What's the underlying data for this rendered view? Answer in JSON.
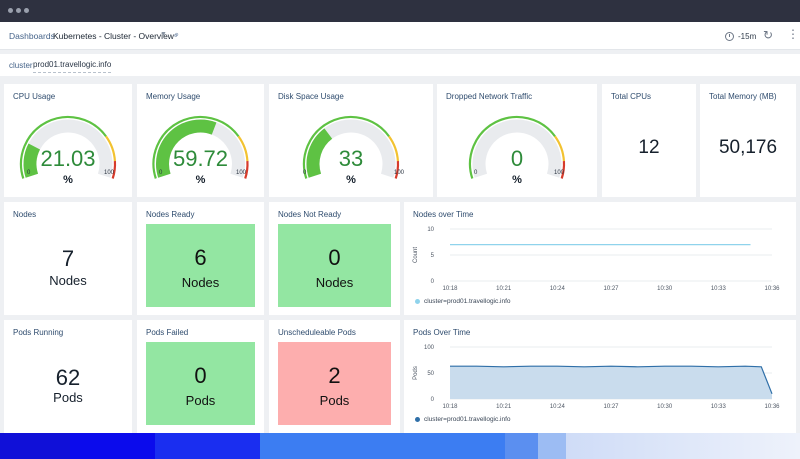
{
  "topbar": {
    "breadcrumb_root": "Dashboards",
    "breadcrumb_current": "Kubernetes - Cluster - Overview",
    "time_range": "-15m",
    "icons": [
      "chevron-down-icon",
      "link-icon",
      "clock-icon",
      "refresh-icon",
      "more-vertical-icon"
    ]
  },
  "filter": {
    "key": "cluster",
    "value": "prod01.travellogic.info"
  },
  "gauges": [
    {
      "title": "CPU Usage",
      "value": "21.03",
      "numeric": 21.03,
      "unit": "%",
      "min": "0",
      "max": "100"
    },
    {
      "title": "Memory Usage",
      "value": "59.72",
      "numeric": 59.72,
      "unit": "%",
      "min": "0",
      "max": "100"
    },
    {
      "title": "Disk Space Usage",
      "value": "33",
      "numeric": 33,
      "unit": "%",
      "min": "0",
      "max": "100"
    },
    {
      "title": "Dropped Network Traffic",
      "value": "0",
      "numeric": 0,
      "unit": "%",
      "min": "0",
      "max": "100"
    }
  ],
  "gauge_colors": {
    "fill": "#5ec243",
    "track": "#e9ebee",
    "warn": "#f2c230",
    "danger": "#d63b2b",
    "value_text": "#2e8b3a"
  },
  "stats": {
    "total_cpus": {
      "title": "Total CPUs",
      "value": "12"
    },
    "total_memory": {
      "title": "Total Memory (MB)",
      "value": "50,176"
    },
    "nodes": {
      "title": "Nodes",
      "value": "7",
      "unit": "Nodes"
    },
    "nodes_ready": {
      "title": "Nodes Ready",
      "value": "6",
      "unit": "Nodes",
      "color": "#93e6a2"
    },
    "nodes_not_ready": {
      "title": "Nodes Not Ready",
      "value": "0",
      "unit": "Nodes",
      "color": "#93e6a2"
    },
    "pods_running": {
      "title": "Pods Running",
      "value": "62",
      "unit": "Pods"
    },
    "pods_failed": {
      "title": "Pods Failed",
      "value": "0",
      "unit": "Pods",
      "color": "#93e6a2"
    },
    "unschedulable_pods": {
      "title": "Unscheduleable Pods",
      "value": "2",
      "unit": "Pods",
      "color": "#fdaeae"
    }
  },
  "chart_data": [
    {
      "type": "line",
      "title": "Nodes over Time",
      "ylabel": "Count",
      "xlabel": "",
      "ylim": [
        0,
        10
      ],
      "yticks": [
        "0",
        "5",
        "10"
      ],
      "x": [
        "10:18",
        "10:21",
        "10:24",
        "10:27",
        "10:30",
        "10:33",
        "10:36"
      ],
      "series": [
        {
          "name": "cluster=prod01.travellogic.info",
          "color": "#8fd3ec",
          "points": [
            [
              0,
              7
            ],
            [
              1,
              7
            ],
            [
              2,
              7
            ],
            [
              3,
              7
            ],
            [
              4,
              7
            ],
            [
              5,
              7
            ],
            [
              5.6,
              7
            ]
          ]
        }
      ],
      "legend": "bottom-left",
      "grid": true
    },
    {
      "type": "area",
      "title": "Pods Over Time",
      "ylabel": "Pods",
      "xlabel": "",
      "ylim": [
        0,
        100
      ],
      "yticks": [
        "0",
        "50",
        "100"
      ],
      "x": [
        "10:18",
        "10:21",
        "10:24",
        "10:27",
        "10:30",
        "10:33",
        "10:36"
      ],
      "series": [
        {
          "name": "cluster=prod01.travellogic.info",
          "color": "#2f6fa8",
          "fill": "#c9dced",
          "points": [
            [
              0,
              63
            ],
            [
              0.5,
              63
            ],
            [
              1,
              62
            ],
            [
              1.5,
              63
            ],
            [
              2,
              63
            ],
            [
              2.5,
              62
            ],
            [
              3,
              63
            ],
            [
              3.5,
              62
            ],
            [
              4,
              63
            ],
            [
              4.5,
              63
            ],
            [
              5,
              62
            ],
            [
              5.5,
              63
            ],
            [
              5.8,
              62
            ],
            [
              6,
              10
            ]
          ]
        }
      ],
      "legend": "bottom-left",
      "grid": true
    }
  ]
}
